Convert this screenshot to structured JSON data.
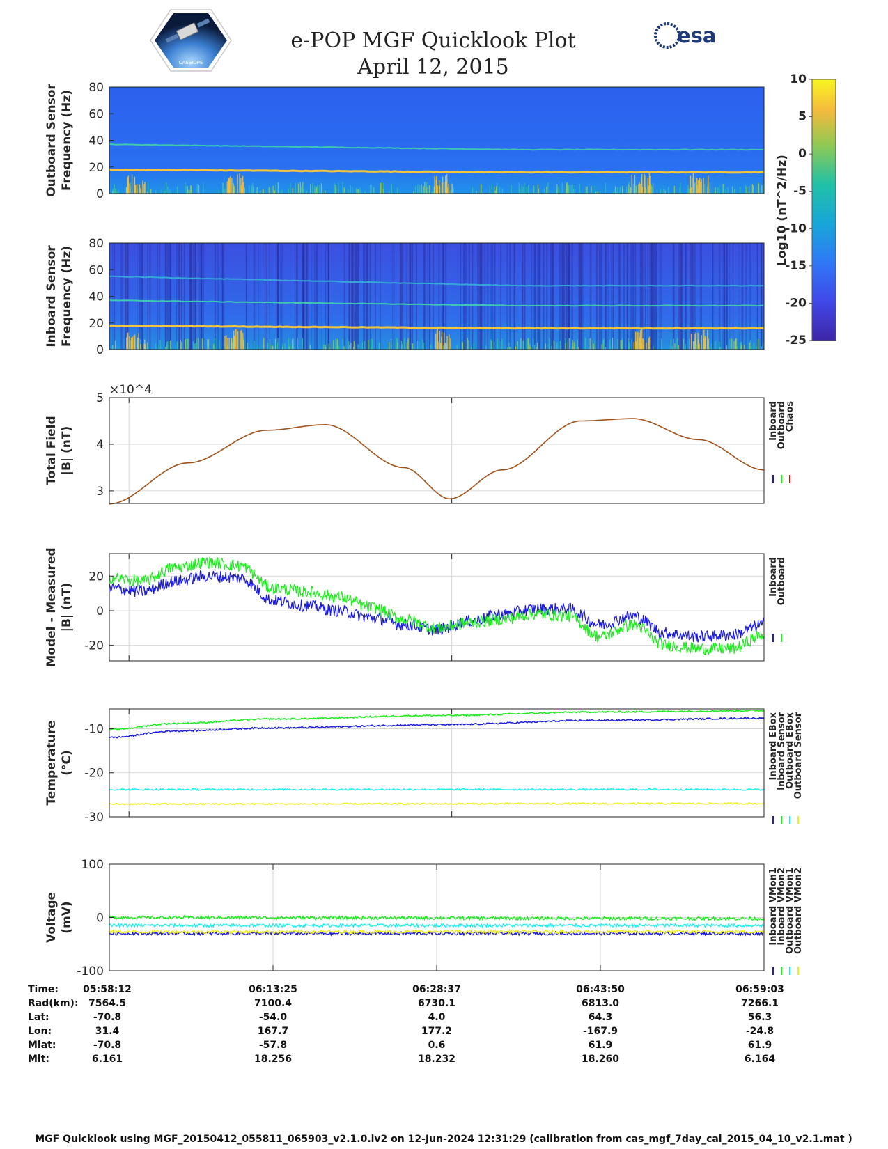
{
  "header": {
    "title": "e-POP MGF Quicklook Plot",
    "date": "April 12, 2015",
    "left_logo": "CASSIOPE",
    "right_logo": "esa"
  },
  "colors": {
    "blue": "#1a1ae0",
    "green": "#1aee1a",
    "red": "#e01a1a",
    "cyan": "#19f0f0",
    "yellow": "#f0f019",
    "brown": "#a0521a",
    "grid": "#d8d8d8"
  },
  "colorbar": {
    "label": "Log10 (nT^2/Hz)",
    "ticks": [
      "10",
      "5",
      "0",
      "-5",
      "-10",
      "-15",
      "-20",
      "-25"
    ]
  },
  "time_axis": {
    "ticks": [
      "05:58:12",
      "06:13:25",
      "06:28:37",
      "06:43:50",
      "06:59:03"
    ]
  },
  "info_table": {
    "rows": [
      {
        "label": "Time:",
        "values": [
          "05:58:12",
          "06:13:25",
          "06:28:37",
          "06:43:50",
          "06:59:03"
        ]
      },
      {
        "label": "Rad(km):",
        "values": [
          "7564.5",
          "7100.4",
          "6730.1",
          "6813.0",
          "7266.1"
        ]
      },
      {
        "label": "Lat:",
        "values": [
          "-70.8",
          "-54.0",
          "4.0",
          "64.3",
          "56.3"
        ]
      },
      {
        "label": "Lon:",
        "values": [
          "31.4",
          "167.7",
          "177.2",
          "-167.9",
          "-24.8"
        ]
      },
      {
        "label": "Mlat:",
        "values": [
          "-70.8",
          "-57.8",
          "0.6",
          "61.9",
          "61.9"
        ]
      },
      {
        "label": "Mlt:",
        "values": [
          "6.161",
          "18.256",
          "18.232",
          "18.260",
          "6.164"
        ]
      }
    ]
  },
  "footer": "MGF Quicklook using MGF_20150412_055811_065903_v2.1.0.lv2 on 12-Jun-2024 12:31:29 (calibration from cas_mgf_7day_cal_2015_04_10_v2.1.mat )",
  "chart_data": [
    {
      "type": "heatmap",
      "name": "outboard-spectrogram",
      "ylabel": [
        "Outboard Sensor",
        "Frequency (Hz)"
      ],
      "yticks": [
        "80",
        "60",
        "40",
        "20",
        "0"
      ],
      "ylim": [
        0,
        80
      ],
      "clim": [
        -25,
        10
      ],
      "spectral_lines_hz": [
        {
          "start": 18,
          "end": 16,
          "level": 5
        },
        {
          "start": 37,
          "end": 33,
          "level": -9
        }
      ]
    },
    {
      "type": "heatmap",
      "name": "inboard-spectrogram",
      "ylabel": [
        "Inboard Sensor",
        "Frequency (Hz)"
      ],
      "yticks": [
        "80",
        "60",
        "40",
        "20",
        "0"
      ],
      "ylim": [
        0,
        80
      ],
      "clim": [
        -25,
        10
      ],
      "spectral_lines_hz": [
        {
          "start": 18,
          "end": 16,
          "level": 5
        },
        {
          "start": 37,
          "end": 33,
          "level": -9
        },
        {
          "start": 55,
          "end": 48,
          "level": -13
        }
      ]
    },
    {
      "type": "line",
      "name": "total-field",
      "ylabel": [
        "Total Field",
        "|B| (nT)"
      ],
      "exponent_label": "×10^4",
      "ylim": [
        2.73,
        5
      ],
      "yticks": [
        "5",
        "4",
        "3"
      ],
      "ytick_values": [
        5,
        4,
        3
      ],
      "legend": [
        "Inboard",
        "Outboard",
        "Chaos"
      ],
      "series": [
        {
          "name": "Total Field",
          "x": [
            0,
            0.12,
            0.24,
            0.33,
            0.45,
            0.52,
            0.6,
            0.72,
            0.8,
            0.9,
            1.0
          ],
          "values": [
            2.72,
            3.6,
            4.3,
            4.42,
            3.5,
            2.83,
            3.45,
            4.5,
            4.55,
            4.1,
            3.45
          ]
        }
      ]
    },
    {
      "type": "line",
      "name": "model-minus-measured",
      "ylabel": [
        "Model - Measured",
        "|B| (nT)"
      ],
      "ylim": [
        -29,
        33
      ],
      "yticks": [
        "20",
        "0",
        "-20"
      ],
      "ytick_values": [
        20,
        0,
        -20
      ],
      "legend": [
        "Inboard",
        "Outboard"
      ],
      "series": [
        {
          "name": "Inboard",
          "x": [
            0,
            0.05,
            0.1,
            0.15,
            0.2,
            0.25,
            0.3,
            0.35,
            0.4,
            0.45,
            0.5,
            0.55,
            0.6,
            0.65,
            0.7,
            0.75,
            0.8,
            0.85,
            0.9,
            0.95,
            1.0
          ],
          "values": [
            13,
            11,
            17,
            20,
            19,
            6,
            3,
            0,
            -4,
            -8,
            -11,
            -6,
            -2,
            1,
            1,
            -8,
            -3,
            -13,
            -15,
            -14,
            -8
          ]
        },
        {
          "name": "Outboard",
          "x": [
            0,
            0.05,
            0.1,
            0.15,
            0.2,
            0.25,
            0.3,
            0.35,
            0.4,
            0.45,
            0.5,
            0.55,
            0.6,
            0.65,
            0.7,
            0.75,
            0.8,
            0.85,
            0.9,
            0.95,
            1.0
          ],
          "values": [
            19,
            17,
            25,
            28,
            26,
            13,
            11,
            8,
            2,
            -5,
            -10,
            -7,
            -5,
            -2,
            -3,
            -15,
            -8,
            -20,
            -22,
            -22,
            -14
          ]
        }
      ]
    },
    {
      "type": "line",
      "name": "temperature",
      "ylabel": [
        "Temperature",
        "(°C)"
      ],
      "ylim": [
        -30,
        -5.5
      ],
      "yticks": [
        "-10",
        "-20",
        "-30"
      ],
      "ytick_values": [
        -10,
        -20,
        -30
      ],
      "legend": [
        "Inboard EBox",
        "Inboard Sensor",
        "Outboard EBox",
        "Outboard Sensor"
      ],
      "series": [
        {
          "name": "Inboard EBox",
          "x": [
            0,
            0.1,
            0.25,
            0.5,
            0.75,
            1.0
          ],
          "values": [
            -12,
            -10.5,
            -9.8,
            -9.1,
            -8.1,
            -7.6
          ]
        },
        {
          "name": "Inboard Sensor",
          "x": [
            0,
            0.1,
            0.25,
            0.5,
            0.75,
            1.0
          ],
          "values": [
            -10.2,
            -8.8,
            -7.8,
            -7.0,
            -6.2,
            -5.9
          ]
        },
        {
          "name": "Outboard EBox",
          "x": [
            0,
            1.0
          ],
          "values": [
            -23.8,
            -23.8
          ]
        },
        {
          "name": "Outboard Sensor",
          "x": [
            0,
            1.0
          ],
          "values": [
            -27.1,
            -27.0
          ]
        }
      ]
    },
    {
      "type": "line",
      "name": "voltage",
      "ylabel": [
        "Voltage",
        "(mV)"
      ],
      "ylim": [
        -100,
        100
      ],
      "yticks": [
        "100",
        "0",
        "-100"
      ],
      "ytick_values": [
        100,
        0,
        -100
      ],
      "legend": [
        "Inboard VMon1",
        "Inboard VMon2",
        "Outboard VMon1",
        "Outboard VMon2"
      ],
      "series": [
        {
          "name": "Inboard VMon1",
          "x": [
            0,
            1.0
          ],
          "values": [
            -30,
            -30
          ]
        },
        {
          "name": "Inboard VMon2",
          "x": [
            0,
            1.0
          ],
          "values": [
            0,
            -2
          ]
        },
        {
          "name": "Outboard VMon1",
          "x": [
            0,
            1.0
          ],
          "values": [
            -15,
            -15
          ]
        },
        {
          "name": "Outboard VMon2",
          "x": [
            0,
            1.0
          ],
          "values": [
            -27,
            -27
          ]
        }
      ]
    }
  ]
}
